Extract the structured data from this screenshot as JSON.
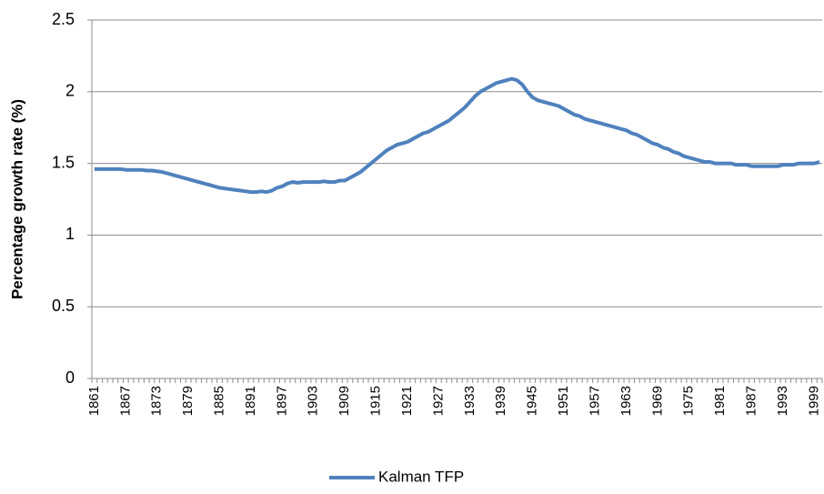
{
  "chart_data": {
    "type": "line",
    "y_label": "Percentage growth rate (%)",
    "categories": [
      "1861",
      null,
      null,
      null,
      null,
      null,
      "1867",
      null,
      null,
      null,
      null,
      null,
      "1873",
      null,
      null,
      null,
      null,
      null,
      "1879",
      null,
      null,
      null,
      null,
      null,
      "1885",
      null,
      null,
      null,
      null,
      null,
      "1891",
      null,
      null,
      null,
      null,
      null,
      "1897",
      null,
      null,
      null,
      null,
      null,
      "1903",
      null,
      null,
      null,
      null,
      null,
      "1909",
      null,
      null,
      null,
      null,
      null,
      "1915",
      null,
      null,
      null,
      null,
      null,
      "1921",
      null,
      null,
      null,
      null,
      null,
      "1927",
      null,
      null,
      null,
      null,
      null,
      "1933",
      null,
      null,
      null,
      null,
      null,
      "1939",
      null,
      null,
      null,
      null,
      null,
      "1945",
      null,
      null,
      null,
      null,
      null,
      "1951",
      null,
      null,
      null,
      null,
      null,
      "1957",
      null,
      null,
      null,
      null,
      null,
      "1963",
      null,
      null,
      null,
      null,
      null,
      "1969",
      null,
      null,
      null,
      null,
      null,
      "1975",
      null,
      null,
      null,
      null,
      null,
      "1981",
      null,
      null,
      null,
      null,
      null,
      "1987",
      null,
      null,
      null,
      null,
      null,
      "1993",
      null,
      null,
      null,
      null,
      null,
      "1999",
      null
    ],
    "series": [
      {
        "name": "Kalman TFP",
        "color": "#4f81bd",
        "values": [
          1.46,
          1.46,
          1.46,
          1.46,
          1.46,
          1.46,
          1.455,
          1.455,
          1.455,
          1.455,
          1.45,
          1.45,
          1.445,
          1.44,
          1.43,
          1.42,
          1.41,
          1.4,
          1.39,
          1.38,
          1.37,
          1.36,
          1.35,
          1.34,
          1.33,
          1.325,
          1.32,
          1.315,
          1.31,
          1.305,
          1.3,
          1.3,
          1.305,
          1.3,
          1.31,
          1.33,
          1.34,
          1.36,
          1.37,
          1.365,
          1.37,
          1.37,
          1.37,
          1.37,
          1.375,
          1.37,
          1.37,
          1.38,
          1.38,
          1.4,
          1.42,
          1.44,
          1.47,
          1.5,
          1.53,
          1.56,
          1.59,
          1.61,
          1.63,
          1.64,
          1.65,
          1.67,
          1.69,
          1.71,
          1.72,
          1.74,
          1.76,
          1.78,
          1.8,
          1.83,
          1.86,
          1.89,
          1.93,
          1.97,
          2.0,
          2.02,
          2.04,
          2.06,
          2.07,
          2.08,
          2.09,
          2.08,
          2.05,
          2.0,
          1.96,
          1.94,
          1.93,
          1.92,
          1.91,
          1.9,
          1.88,
          1.86,
          1.84,
          1.83,
          1.81,
          1.8,
          1.79,
          1.78,
          1.77,
          1.76,
          1.75,
          1.74,
          1.73,
          1.71,
          1.7,
          1.68,
          1.66,
          1.64,
          1.63,
          1.61,
          1.6,
          1.58,
          1.57,
          1.55,
          1.54,
          1.53,
          1.52,
          1.51,
          1.51,
          1.5,
          1.5,
          1.5,
          1.5,
          1.49,
          1.49,
          1.49,
          1.48,
          1.48,
          1.48,
          1.48,
          1.48,
          1.48,
          1.49,
          1.49,
          1.49,
          1.5,
          1.5,
          1.5,
          1.5,
          1.51
        ]
      }
    ],
    "ylim": [
      0,
      2.5
    ],
    "yticks": [
      0,
      0.5,
      1,
      1.5,
      2,
      2.5
    ],
    "grid": true,
    "legend": "bottom"
  }
}
